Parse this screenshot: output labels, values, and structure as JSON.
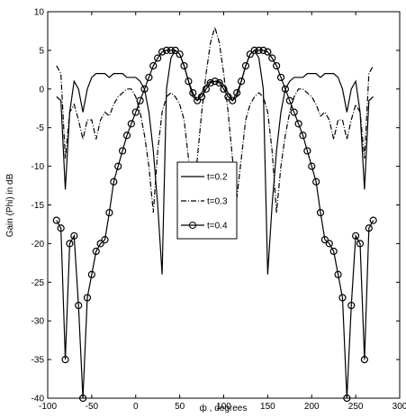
{
  "chart_data": {
    "type": "line",
    "xlabel": "ф , degrees",
    "ylabel": "Gain (Phi) in dB",
    "x": [
      -90,
      -85,
      -80,
      -75,
      -70,
      -65,
      -60,
      -55,
      -50,
      -45,
      -40,
      -35,
      -30,
      -25,
      -20,
      -15,
      -10,
      -5,
      0,
      5,
      10,
      15,
      20,
      25,
      30,
      35,
      40,
      45,
      50,
      55,
      60,
      65,
      70,
      75,
      80,
      85,
      90,
      95,
      100,
      105,
      110,
      115,
      120,
      125,
      130,
      135,
      140,
      145,
      150,
      155,
      160,
      165,
      170,
      175,
      180,
      185,
      190,
      195,
      200,
      205,
      210,
      215,
      220,
      225,
      230,
      235,
      240,
      245,
      250,
      255,
      260,
      265,
      270
    ],
    "series": [
      {
        "name": "t=0.2",
        "color": "#000000",
        "dash": "solid",
        "values": [
          -1,
          -1.5,
          -13,
          -3,
          1,
          0,
          -3,
          0,
          1.5,
          2,
          2,
          2,
          1.5,
          2,
          2,
          2,
          1.5,
          1.5,
          1.5,
          1,
          0,
          -3,
          -8,
          -15,
          -24,
          0,
          4,
          5,
          4.5,
          3,
          1,
          -1,
          -1.5,
          -0.5,
          0.5,
          1,
          1,
          1,
          0.5,
          -0.5,
          -1.5,
          -1,
          1,
          3,
          4.5,
          5,
          4,
          0,
          -24,
          -15,
          -8,
          -3,
          0,
          1,
          1.5,
          1.5,
          1.5,
          2,
          2,
          2,
          1.5,
          2,
          2,
          2,
          1.5,
          0,
          -3,
          0,
          1,
          -3,
          -13,
          -1.5,
          -1
        ]
      },
      {
        "name": "t=0.3",
        "color": "#000000",
        "dash": "dashdot",
        "values": [
          3,
          2,
          -9,
          -3,
          -2,
          -4,
          -6.5,
          -4,
          -4,
          -6.5,
          -4,
          -3,
          -3.5,
          -2,
          -1,
          -0.5,
          0,
          0,
          -1,
          -3,
          -6,
          -10,
          -16,
          -8,
          -3,
          -1,
          -0.5,
          -1,
          -2,
          -4,
          -9,
          -14,
          -9,
          -3,
          2,
          6,
          8,
          6,
          2,
          -3,
          -9,
          -14,
          -9,
          -4,
          -2,
          -1,
          -0.5,
          -1,
          -3,
          -8,
          -16,
          -10,
          -6,
          -3,
          -1,
          0,
          0,
          -0.5,
          -1,
          -2,
          -3.5,
          -3,
          -4,
          -6.5,
          -4,
          -4,
          -6.5,
          -4,
          -2,
          -3,
          -9,
          2,
          3
        ]
      },
      {
        "name": "t=0.4",
        "color": "#000000",
        "dash": "solid",
        "marker": "o",
        "values": [
          -17,
          -18,
          -35,
          -20,
          -19,
          -28,
          -40,
          -27,
          -24,
          -21,
          -20,
          -19.5,
          -16,
          -12,
          -10,
          -8,
          -6,
          -4.5,
          -3,
          -1.5,
          0,
          1.5,
          3,
          4,
          4.8,
          5,
          5,
          5,
          4.5,
          3,
          1,
          -0.5,
          -1.5,
          -1,
          0,
          0.8,
          1,
          0.8,
          0,
          -1,
          -1.5,
          -0.5,
          1,
          3,
          4.5,
          5,
          5,
          5,
          4.8,
          4,
          3,
          1.5,
          0,
          -1.5,
          -3,
          -4.5,
          -6,
          -8,
          -10,
          -12,
          -16,
          -19.5,
          -20,
          -21,
          -24,
          -27,
          -40,
          -28,
          -19,
          -20,
          -35,
          -18,
          -17
        ]
      }
    ],
    "xlim": [
      -100,
      300
    ],
    "xticks": [
      -100,
      -50,
      0,
      50,
      100,
      150,
      200,
      250,
      300
    ],
    "ylim": [
      -40,
      10
    ],
    "yticks": [
      -40,
      -35,
      -30,
      -25,
      -20,
      -15,
      -10,
      -5,
      0,
      5,
      10
    ],
    "grid": false,
    "legend": "center"
  }
}
